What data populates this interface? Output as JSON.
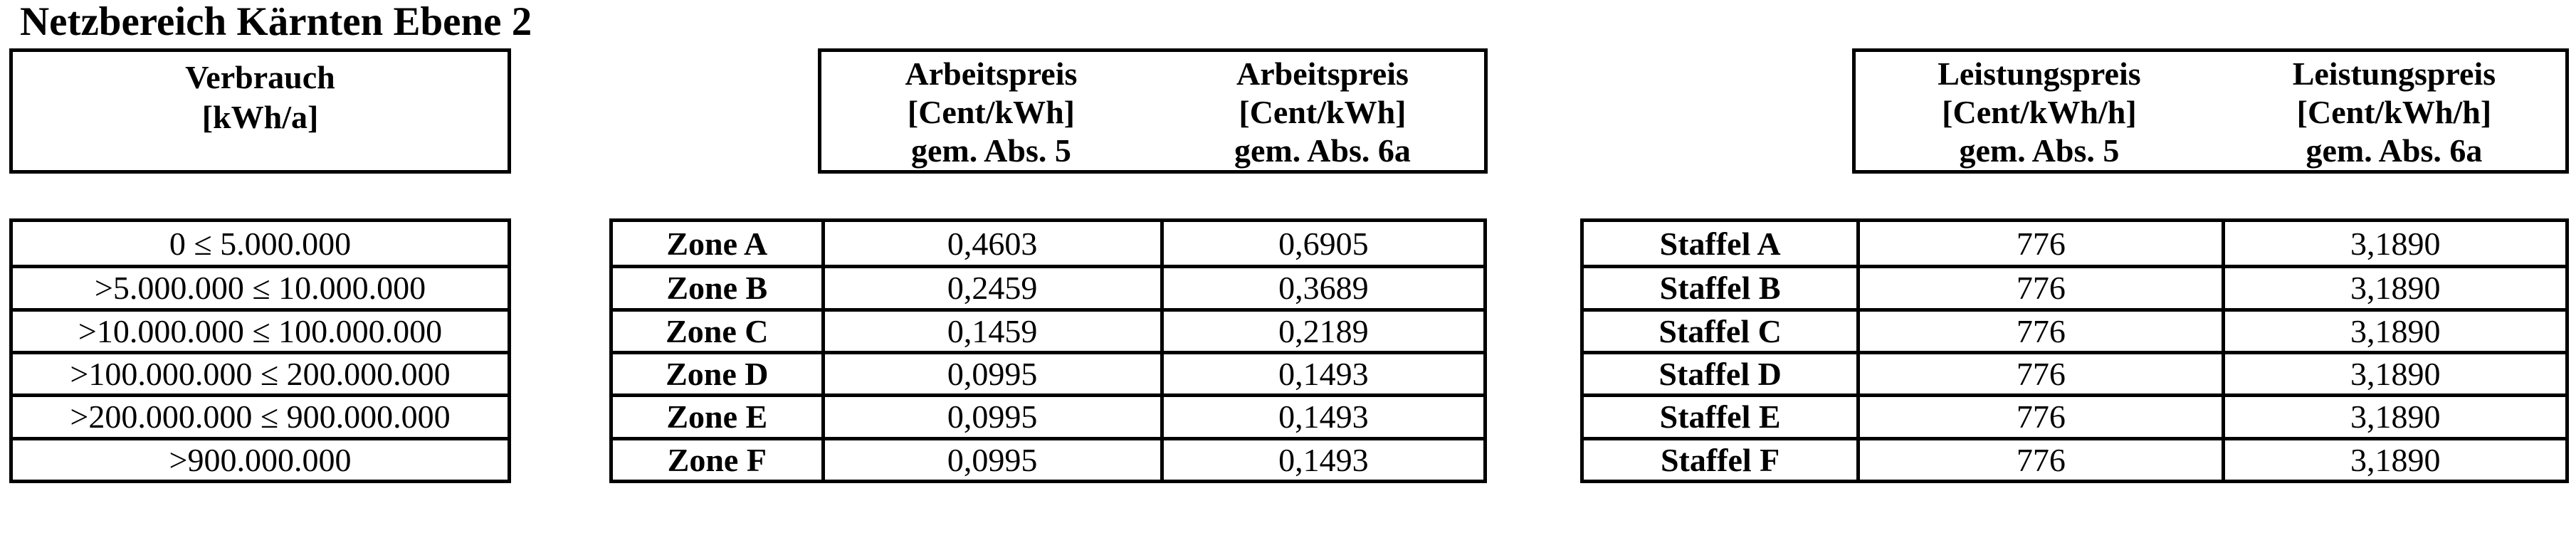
{
  "title": "Netzbereich Kärnten Ebene 2",
  "colors": {
    "text": "#000000",
    "border": "#000000",
    "background": "#ffffff"
  },
  "consumption_header": {
    "line1": "Verbrauch",
    "line2": "[kWh/a]"
  },
  "arbeitspreis_header": {
    "col1": {
      "line1": "Arbeitspreis",
      "line2": "[Cent/kWh]",
      "line3": "gem. Abs. 5"
    },
    "col2": {
      "line1": "Arbeitspreis",
      "line2": "[Cent/kWh]",
      "line3": "gem. Abs. 6a"
    }
  },
  "leistungspreis_header": {
    "col1": {
      "line1": "Leistungspreis",
      "line2": "[Cent/kWh/h]",
      "line3": "gem. Abs. 5"
    },
    "col2": {
      "line1": "Leistungspreis",
      "line2": "[Cent/kWh/h]",
      "line3": "gem. Abs. 6a"
    }
  },
  "consumption_table": {
    "rows": [
      "0 ≤ 5.000.000",
      ">5.000.000 ≤ 10.000.000",
      ">10.000.000 ≤ 100.000.000",
      ">100.000.000 ≤ 200.000.000",
      ">200.000.000 ≤ 900.000.000",
      ">900.000.000"
    ]
  },
  "zone_table": {
    "rows": [
      {
        "label": "Zone A",
        "abs5": "0,4603",
        "abs6a": "0,6905"
      },
      {
        "label": "Zone B",
        "abs5": "0,2459",
        "abs6a": "0,3689"
      },
      {
        "label": "Zone C",
        "abs5": "0,1459",
        "abs6a": "0,2189"
      },
      {
        "label": "Zone D",
        "abs5": "0,0995",
        "abs6a": "0,1493"
      },
      {
        "label": "Zone E",
        "abs5": "0,0995",
        "abs6a": "0,1493"
      },
      {
        "label": "Zone F",
        "abs5": "0,0995",
        "abs6a": "0,1493"
      }
    ]
  },
  "staffel_table": {
    "rows": [
      {
        "label": "Staffel A",
        "abs5": "776",
        "abs6a": "3,1890"
      },
      {
        "label": "Staffel B",
        "abs5": "776",
        "abs6a": "3,1890"
      },
      {
        "label": "Staffel C",
        "abs5": "776",
        "abs6a": "3,1890"
      },
      {
        "label": "Staffel D",
        "abs5": "776",
        "abs6a": "3,1890"
      },
      {
        "label": "Staffel E",
        "abs5": "776",
        "abs6a": "3,1890"
      },
      {
        "label": "Staffel F",
        "abs5": "776",
        "abs6a": "3,1890"
      }
    ]
  }
}
